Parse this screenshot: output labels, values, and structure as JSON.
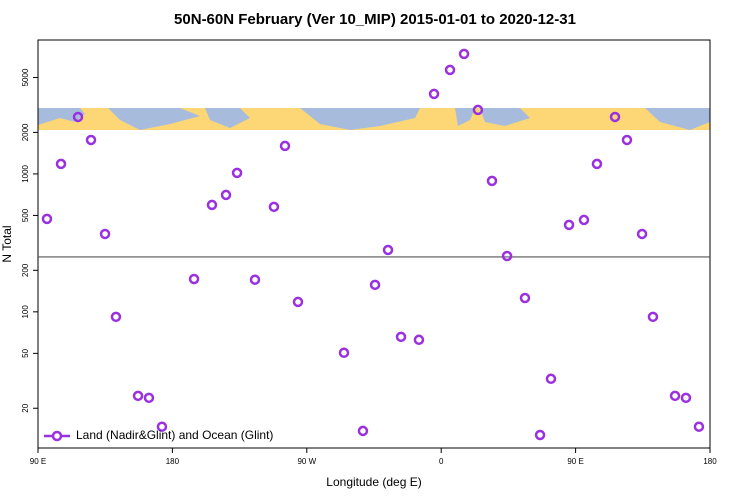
{
  "chart_data": {
    "type": "scatter",
    "title": "50N-60N February (Ver 10_MIP)   2015-01-01 to 2020-12-31",
    "xlabel": "Longitude (deg E)",
    "ylabel": "N Total",
    "x": [
      96,
      105.4,
      116.8,
      125.5,
      134.9,
      142.2,
      157,
      164.3,
      173,
      194.5,
      206.5,
      215.9,
      223.3,
      235.3,
      248,
      255.4,
      264.1,
      294.9,
      307.6,
      315.7,
      324.4,
      333.1,
      345.1,
      355.2,
      365.9,
      375.3,
      384.6,
      394,
      404.1,
      416.1,
      426.2,
      433.5,
      445.6,
      455.6,
      464.3,
      476.4,
      484.4,
      494.5,
      501.8,
      516.6,
      523.9,
      532.6
    ],
    "series": [
      {
        "name": "Land (Nadir&Glint) and Ocean (Glint)",
        "color": "#9b30e0",
        "values": [
          472,
          1182,
          2588,
          1763,
          367,
          92,
          24.6,
          23.8,
          14.7,
          173,
          596,
          704,
          1017,
          171,
          577,
          1596,
          118,
          50.5,
          13.7,
          157,
          281,
          65.9,
          62.7,
          3800,
          5673,
          7410,
          2910,
          890,
          254,
          126,
          12.8,
          32.7,
          427,
          464,
          1182,
          2588,
          1763,
          367,
          92,
          24.6,
          23.8,
          14.7
        ]
      }
    ],
    "xlim": [
      90,
      540
    ],
    "xticks": [
      {
        "value": 90,
        "label": "90 E"
      },
      180,
      {
        "value": 270,
        "label": "90 W"
      },
      {
        "value": 360,
        "label": "0"
      },
      {
        "value": 450,
        "label": "90 E"
      },
      {
        "value": 540,
        "label": "180"
      }
    ],
    "ylim": [
      10.3,
      9350
    ],
    "yticks": [
      20,
      50,
      100,
      200,
      500,
      1000,
      2000,
      5000
    ],
    "log_y": true,
    "hline": 250,
    "legend": "lower left"
  }
}
